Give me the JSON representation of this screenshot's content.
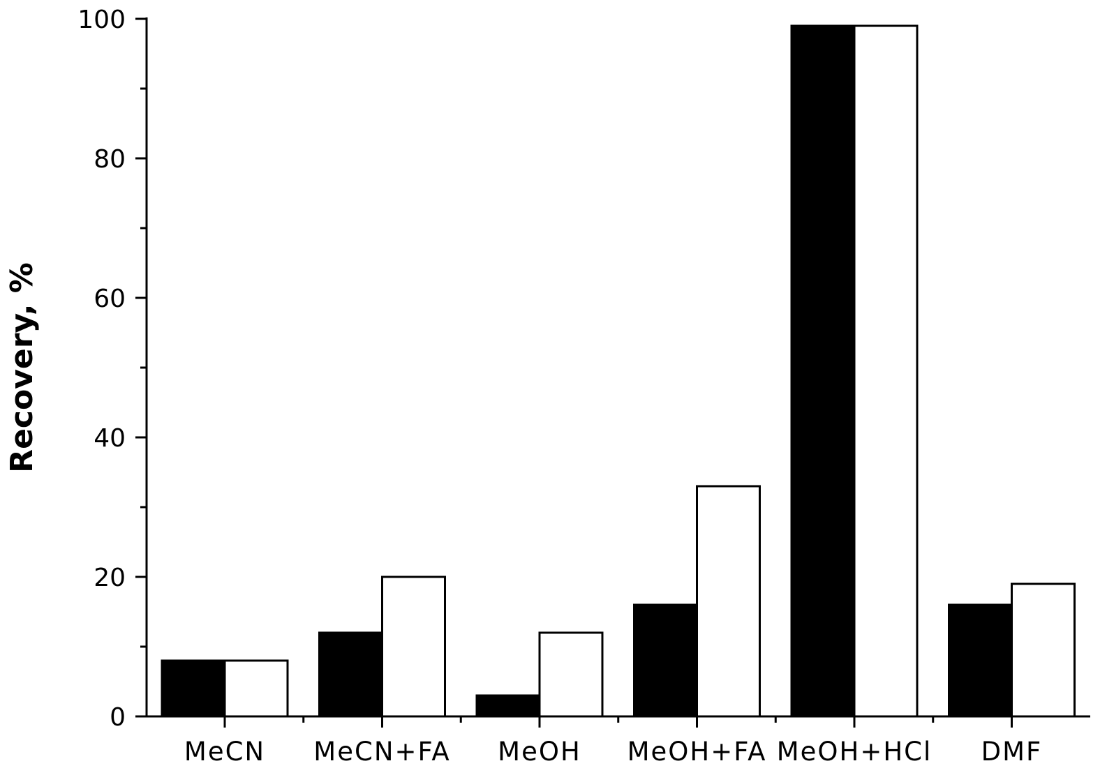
{
  "chart_data": {
    "type": "bar",
    "title": "",
    "xlabel": "",
    "ylabel": "Recovery, %",
    "categories": [
      "MeCN",
      "MeCN+FA",
      "MeOH",
      "MeOH+FA",
      "MeOH+HCl",
      "DMF"
    ],
    "series": [
      {
        "fill": "#000000",
        "values": [
          8,
          12,
          3,
          16,
          99,
          16
        ]
      },
      {
        "fill": "#ffffff",
        "values": [
          8,
          20,
          12,
          33,
          99,
          19
        ]
      }
    ],
    "ylim": [
      0,
      100
    ],
    "y_ticks": [
      0,
      20,
      40,
      60,
      80,
      100
    ],
    "y_tick_labels": [
      "0",
      "20",
      "40",
      "60",
      "80",
      "100"
    ],
    "y_minor_step": 10,
    "grid": false,
    "legend": "none"
  }
}
